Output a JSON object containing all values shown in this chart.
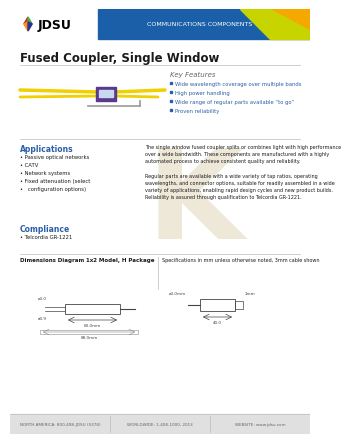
{
  "header_text": "COMMUNICATIONS COMPONENTS",
  "product_title": "Fused Coupler, Single Window",
  "key_features_label": "Key Features",
  "key_features": [
    "Wide wavelength coverage over multiple bands",
    "High power handling",
    "Wide range of regular parts available “to go”",
    "Proven reliability"
  ],
  "applications_label": "Applications",
  "applications": [
    "Passive optical networks",
    "CATV",
    "Network systems",
    "Fixed attenuation (select",
    "  configuration options)"
  ],
  "body_para1": "The single window fused coupler splits or combines light with high performance over a wide bandwidth. These components are manufactured with a highly automated process to achieve consistent quality and reliability.",
  "body_para2": "Regular parts are available with a wide variety of tap ratios, operating wavelengths, and connector options, and are standard, be readily assembled in a wide variety of applications, enabling rapid design cycles and new product builds. Reliability is assured through qualification to Telcordia GR-1221.",
  "compliance_label": "Compliance",
  "compliance_item": "Telcordia GR-1221",
  "dimensions_label": "Dimensions Diagram 1x2 Model, H Package",
  "specs_label": "Specifications in mm unless otherwise noted, 3mm cable shown",
  "footer_col1": "NORTH AMERICA: 800-498-JDSU (5378)",
  "footer_col2": "WORLDWIDE: 1-408-1000, 2013",
  "footer_col3": "WEBSITE: www.jdsu.com",
  "header_bg": "#1a5fa8",
  "accent_green": "#c8d400",
  "accent_yellow": "#f5a800",
  "body_bg": "#ffffff",
  "footer_bg": "#e0e0e0",
  "blue_text": "#2b5fa8",
  "dark_text": "#1a1a1a",
  "gray_text": "#666666",
  "light_gray": "#bbbbbb",
  "watermark_color": "#e8dfc8"
}
